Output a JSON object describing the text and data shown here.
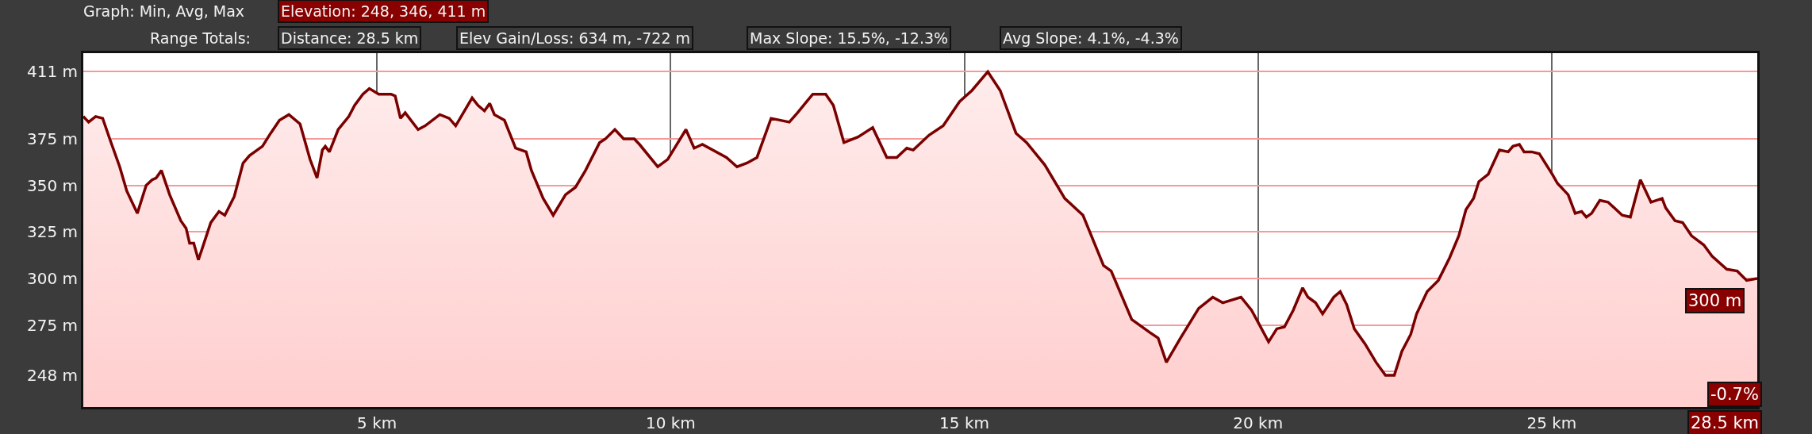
{
  "chart_data": {
    "type": "area",
    "annotations": [
      "Graph: Min, Avg, Max",
      "Elevation: 248, 346, 411 m",
      "Range Totals:",
      "Distance: 28.5 km",
      "Elev Gain/Loss: 634 m, -722 m",
      "Max Slope: 15.5%, -12.3%",
      "Avg Slope: 4.1%, -4.3%",
      {
        "text": "300 m",
        "x": 28.5,
        "y": 300
      },
      "-0.7%",
      "28.5 km"
    ],
    "series": [
      {
        "color": "#7a0000",
        "x": [
          0,
          0.09,
          0.21,
          0.33,
          0.45,
          0.62,
          0.74,
          0.92,
          1.07,
          1.17,
          1.24,
          1.33,
          1.47,
          1.66,
          1.75,
          1.81,
          1.88,
          1.96,
          2.17,
          2.31,
          2.41,
          2.57,
          2.72,
          2.83,
          3.05,
          3.19,
          3.34,
          3.5,
          3.69,
          3.86,
          3.98,
          4.07,
          4.12,
          4.19,
          4.34,
          4.52,
          4.62,
          4.76,
          4.87,
          5.03,
          5.24,
          5.31,
          5.4,
          5.48,
          5.7,
          5.82,
          6.07,
          6.23,
          6.34,
          6.62,
          6.72,
          6.83,
          6.92,
          7.0,
          7.17,
          7.36,
          7.54,
          7.63,
          7.83,
          8.0,
          8.21,
          8.38,
          8.55,
          8.79,
          8.89,
          9.05,
          9.2,
          9.38,
          9.47,
          9.78,
          9.95,
          10.26,
          10.4,
          10.54,
          10.95,
          11.13,
          11.3,
          11.47,
          11.71,
          12.02,
          12.16,
          12.42,
          12.64,
          12.77,
          12.95,
          13.19,
          13.44,
          13.68,
          13.85,
          14.02,
          14.13,
          14.4,
          14.64,
          14.92,
          15.13,
          15.4,
          15.61,
          15.88,
          16.06,
          16.37,
          16.71,
          17.02,
          17.37,
          17.5,
          17.85,
          18.16,
          18.3,
          18.44,
          18.68,
          18.99,
          19.23,
          19.4,
          19.71,
          19.89,
          20.01,
          20.18,
          20.32,
          20.45,
          20.6,
          20.76,
          20.85,
          20.98,
          21.1,
          21.29,
          21.4,
          21.51,
          21.64,
          21.82,
          22.01,
          22.17,
          22.32,
          22.45,
          22.6,
          22.7,
          22.88,
          23.07,
          23.26,
          23.42,
          23.54,
          23.67,
          23.76,
          23.92,
          24.11,
          24.26,
          24.34,
          24.45,
          24.53,
          24.66,
          24.79,
          25.01,
          25.1,
          25.28,
          25.4,
          25.51,
          25.59,
          25.68,
          25.82,
          25.96,
          26.2,
          26.34,
          26.51,
          26.69,
          26.88,
          26.94,
          27.1,
          27.23,
          27.38,
          27.59,
          27.73,
          27.98,
          28.16,
          28.32,
          28.5
        ],
        "values": [
          387,
          384,
          387,
          386,
          375,
          360,
          347,
          335,
          350,
          353,
          354,
          358,
          345,
          331,
          327,
          319,
          319,
          310,
          330,
          336,
          334,
          344,
          362,
          366,
          371,
          378,
          385,
          388,
          383,
          364,
          354,
          369,
          371,
          368,
          380,
          387,
          393,
          399,
          402,
          399,
          399,
          398,
          386,
          389,
          380,
          382,
          388,
          386,
          382,
          397,
          393,
          390,
          394,
          388,
          385,
          370,
          368,
          358,
          343,
          334,
          345,
          349,
          358,
          373,
          375,
          380,
          375,
          375,
          372,
          360,
          364,
          380,
          370,
          372,
          365,
          360,
          362,
          365,
          386,
          384,
          389,
          399,
          399,
          393,
          373,
          376,
          381,
          365,
          365,
          370,
          369,
          377,
          382,
          395,
          401,
          411,
          401,
          378,
          373,
          361,
          343,
          334,
          307,
          304,
          278,
          271,
          268,
          255,
          268,
          284,
          290,
          287,
          290,
          283,
          276,
          266,
          273,
          274,
          283,
          295,
          290,
          287,
          281,
          290,
          293,
          286,
          273,
          265,
          255,
          248,
          248,
          261,
          270,
          281,
          293,
          299,
          311,
          323,
          337,
          343,
          352,
          356,
          369,
          368,
          371,
          372,
          368,
          368,
          367,
          356,
          351,
          345,
          335,
          336,
          333,
          335,
          342,
          341,
          334,
          333,
          353,
          341,
          343,
          338,
          331,
          330,
          323,
          318,
          312,
          305,
          304,
          299,
          300
        ]
      }
    ],
    "xlim": [
      0,
      28.5
    ],
    "xticks": [
      {
        "value": 5,
        "label": "5 km"
      },
      {
        "value": 10,
        "label": "10 km"
      },
      {
        "value": 15,
        "label": "15 km"
      },
      {
        "value": 20,
        "label": "20 km"
      },
      {
        "value": 25,
        "label": "25 km"
      }
    ],
    "ylim": [
      231,
      421
    ],
    "yticks": [
      {
        "value": 248,
        "label": "248 m"
      },
      {
        "value": 250,
        "label": null
      },
      {
        "value": 275,
        "label": "275 m"
      },
      {
        "value": 300,
        "label": "300 m"
      },
      {
        "value": 325,
        "label": "325 m"
      },
      {
        "value": 350,
        "label": "350 m"
      },
      {
        "value": 375,
        "label": "375 m"
      },
      {
        "value": 411,
        "label": "411 m"
      }
    ],
    "grid": true,
    "legend": false,
    "marker": "none",
    "line_style": "solid"
  }
}
